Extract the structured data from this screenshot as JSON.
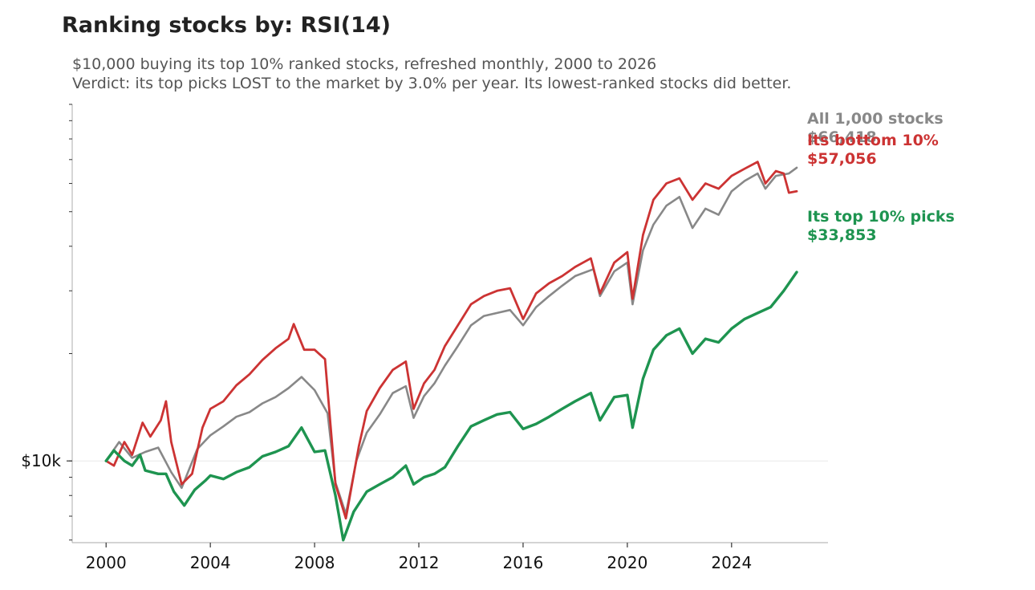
{
  "title": "Ranking stocks by: RSI(14)",
  "subtitle_lines": [
    "$10,000 buying its top 10% ranked stocks, refreshed monthly, 2000 to 2026",
    "Verdict: its top picks LOST to the market by 3.0% per year. Its lowest-ranked stocks did better."
  ],
  "chart_data": {
    "type": "line",
    "title": "Ranking stocks by: RSI(14)",
    "xlabel": "",
    "ylabel": "",
    "y_scale": "log",
    "xlim": [
      1998.7,
      2027.7
    ],
    "ylim": [
      5900,
      100000
    ],
    "x_ticks": [
      2000,
      2004,
      2008,
      2012,
      2016,
      2020,
      2024
    ],
    "y_ticks": [
      {
        "value": 10000,
        "label": "$10k"
      }
    ],
    "grid": "horizontal line at $10k only",
    "legend": "none; end-of-line labels on the right",
    "series": [
      {
        "name": "All 1,000 stocks",
        "end_label": "$66,418",
        "color": "#888888",
        "points": [
          [
            2000.0,
            10000
          ],
          [
            2000.5,
            11300
          ],
          [
            2001.0,
            10200
          ],
          [
            2001.5,
            10600
          ],
          [
            2002.0,
            10900
          ],
          [
            2002.5,
            9300
          ],
          [
            2002.9,
            8400
          ],
          [
            2003.5,
            10800
          ],
          [
            2004.0,
            11800
          ],
          [
            2004.5,
            12500
          ],
          [
            2005.0,
            13300
          ],
          [
            2005.5,
            13700
          ],
          [
            2006.0,
            14500
          ],
          [
            2006.5,
            15100
          ],
          [
            2007.0,
            16000
          ],
          [
            2007.5,
            17200
          ],
          [
            2008.0,
            15800
          ],
          [
            2008.5,
            13600
          ],
          [
            2008.8,
            8700
          ],
          [
            2009.2,
            7100
          ],
          [
            2009.6,
            10000
          ],
          [
            2010.0,
            12000
          ],
          [
            2010.5,
            13500
          ],
          [
            2011.0,
            15500
          ],
          [
            2011.5,
            16200
          ],
          [
            2011.8,
            13200
          ],
          [
            2012.2,
            15200
          ],
          [
            2012.6,
            16500
          ],
          [
            2013.0,
            18500
          ],
          [
            2013.5,
            21000
          ],
          [
            2014.0,
            24000
          ],
          [
            2014.5,
            25500
          ],
          [
            2015.0,
            26000
          ],
          [
            2015.5,
            26500
          ],
          [
            2016.0,
            24000
          ],
          [
            2016.5,
            27000
          ],
          [
            2017.0,
            29000
          ],
          [
            2017.5,
            31000
          ],
          [
            2018.0,
            33000
          ],
          [
            2018.7,
            34500
          ],
          [
            2018.95,
            29000
          ],
          [
            2019.5,
            34000
          ],
          [
            2020.0,
            36000
          ],
          [
            2020.2,
            27500
          ],
          [
            2020.6,
            39000
          ],
          [
            2021.0,
            46000
          ],
          [
            2021.5,
            52000
          ],
          [
            2022.0,
            55000
          ],
          [
            2022.5,
            45000
          ],
          [
            2023.0,
            51000
          ],
          [
            2023.5,
            49000
          ],
          [
            2024.0,
            57000
          ],
          [
            2024.5,
            61000
          ],
          [
            2025.0,
            64000
          ],
          [
            2025.3,
            58000
          ],
          [
            2025.7,
            63000
          ],
          [
            2026.2,
            64000
          ],
          [
            2026.5,
            66418
          ]
        ]
      },
      {
        "name": "Its bottom 10%",
        "end_label": "$57,056",
        "color": "#cc3333",
        "points": [
          [
            2000.0,
            10000
          ],
          [
            2000.3,
            9700
          ],
          [
            2000.7,
            11300
          ],
          [
            2001.0,
            10400
          ],
          [
            2001.4,
            12800
          ],
          [
            2001.7,
            11700
          ],
          [
            2002.1,
            13000
          ],
          [
            2002.3,
            14700
          ],
          [
            2002.5,
            11300
          ],
          [
            2002.9,
            8600
          ],
          [
            2003.3,
            9200
          ],
          [
            2003.7,
            12400
          ],
          [
            2004.0,
            14000
          ],
          [
            2004.5,
            14700
          ],
          [
            2005.0,
            16300
          ],
          [
            2005.5,
            17500
          ],
          [
            2006.0,
            19200
          ],
          [
            2006.5,
            20700
          ],
          [
            2007.0,
            22000
          ],
          [
            2007.2,
            24200
          ],
          [
            2007.6,
            20500
          ],
          [
            2008.0,
            20500
          ],
          [
            2008.4,
            19300
          ],
          [
            2008.8,
            8600
          ],
          [
            2009.2,
            6900
          ],
          [
            2009.7,
            11000
          ],
          [
            2010.0,
            13800
          ],
          [
            2010.5,
            16000
          ],
          [
            2011.0,
            18000
          ],
          [
            2011.5,
            19000
          ],
          [
            2011.8,
            14000
          ],
          [
            2012.2,
            16500
          ],
          [
            2012.6,
            18000
          ],
          [
            2013.0,
            21000
          ],
          [
            2013.5,
            24000
          ],
          [
            2014.0,
            27500
          ],
          [
            2014.5,
            29000
          ],
          [
            2015.0,
            30000
          ],
          [
            2015.5,
            30500
          ],
          [
            2016.0,
            25000
          ],
          [
            2016.5,
            29500
          ],
          [
            2017.0,
            31500
          ],
          [
            2017.5,
            33000
          ],
          [
            2018.0,
            35000
          ],
          [
            2018.6,
            37000
          ],
          [
            2018.95,
            29500
          ],
          [
            2019.5,
            36000
          ],
          [
            2020.0,
            38500
          ],
          [
            2020.2,
            28500
          ],
          [
            2020.6,
            43000
          ],
          [
            2021.0,
            54000
          ],
          [
            2021.5,
            60000
          ],
          [
            2022.0,
            62000
          ],
          [
            2022.5,
            54000
          ],
          [
            2023.0,
            60000
          ],
          [
            2023.5,
            58000
          ],
          [
            2024.0,
            63000
          ],
          [
            2024.5,
            66000
          ],
          [
            2025.0,
            69000
          ],
          [
            2025.3,
            60000
          ],
          [
            2025.7,
            65000
          ],
          [
            2026.0,
            64000
          ],
          [
            2026.2,
            56500
          ],
          [
            2026.5,
            57056
          ]
        ]
      },
      {
        "name": "Its top 10% picks",
        "end_label": "$33,853",
        "color": "#1e9450",
        "points": [
          [
            2000.0,
            10000
          ],
          [
            2000.3,
            10700
          ],
          [
            2000.7,
            10000
          ],
          [
            2001.0,
            9700
          ],
          [
            2001.3,
            10400
          ],
          [
            2001.5,
            9400
          ],
          [
            2002.0,
            9200
          ],
          [
            2002.3,
            9200
          ],
          [
            2002.6,
            8200
          ],
          [
            2003.0,
            7500
          ],
          [
            2003.4,
            8300
          ],
          [
            2003.8,
            8800
          ],
          [
            2004.0,
            9100
          ],
          [
            2004.5,
            8900
          ],
          [
            2005.0,
            9300
          ],
          [
            2005.5,
            9600
          ],
          [
            2006.0,
            10300
          ],
          [
            2006.5,
            10600
          ],
          [
            2007.0,
            11000
          ],
          [
            2007.5,
            12400
          ],
          [
            2008.0,
            10600
          ],
          [
            2008.4,
            10700
          ],
          [
            2008.8,
            8000
          ],
          [
            2009.1,
            6000
          ],
          [
            2009.5,
            7200
          ],
          [
            2010.0,
            8200
          ],
          [
            2010.5,
            8600
          ],
          [
            2011.0,
            9000
          ],
          [
            2011.5,
            9700
          ],
          [
            2011.8,
            8600
          ],
          [
            2012.2,
            9000
          ],
          [
            2012.6,
            9200
          ],
          [
            2013.0,
            9600
          ],
          [
            2013.5,
            11000
          ],
          [
            2014.0,
            12500
          ],
          [
            2014.5,
            13000
          ],
          [
            2015.0,
            13500
          ],
          [
            2015.5,
            13700
          ],
          [
            2016.0,
            12300
          ],
          [
            2016.5,
            12700
          ],
          [
            2017.0,
            13300
          ],
          [
            2017.5,
            14000
          ],
          [
            2018.0,
            14700
          ],
          [
            2018.6,
            15500
          ],
          [
            2018.95,
            13000
          ],
          [
            2019.5,
            15100
          ],
          [
            2020.0,
            15300
          ],
          [
            2020.2,
            12400
          ],
          [
            2020.6,
            17000
          ],
          [
            2021.0,
            20500
          ],
          [
            2021.5,
            22500
          ],
          [
            2022.0,
            23500
          ],
          [
            2022.5,
            20000
          ],
          [
            2023.0,
            22000
          ],
          [
            2023.5,
            21500
          ],
          [
            2024.0,
            23500
          ],
          [
            2024.5,
            25000
          ],
          [
            2025.0,
            26000
          ],
          [
            2025.5,
            27000
          ],
          [
            2026.0,
            30000
          ],
          [
            2026.5,
            33853
          ]
        ]
      }
    ]
  }
}
